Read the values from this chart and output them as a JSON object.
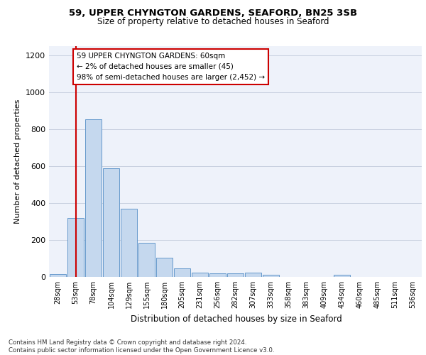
{
  "title_line1": "59, UPPER CHYNGTON GARDENS, SEAFORD, BN25 3SB",
  "title_line2": "Size of property relative to detached houses in Seaford",
  "xlabel": "Distribution of detached houses by size in Seaford",
  "ylabel": "Number of detached properties",
  "categories": [
    "28sqm",
    "53sqm",
    "78sqm",
    "104sqm",
    "129sqm",
    "155sqm",
    "180sqm",
    "205sqm",
    "231sqm",
    "256sqm",
    "282sqm",
    "307sqm",
    "333sqm",
    "358sqm",
    "383sqm",
    "409sqm",
    "434sqm",
    "460sqm",
    "485sqm",
    "511sqm",
    "536sqm"
  ],
  "values": [
    17,
    320,
    855,
    590,
    368,
    185,
    105,
    48,
    22,
    18,
    18,
    25,
    10,
    0,
    0,
    0,
    12,
    0,
    0,
    0,
    0
  ],
  "bar_color": "#c5d8ee",
  "bar_edgecolor": "#6699cc",
  "annotation_box_text": "59 UPPER CHYNGTON GARDENS: 60sqm\n← 2% of detached houses are smaller (45)\n98% of semi-detached houses are larger (2,452) →",
  "vline_color": "#cc0000",
  "vline_x_index": 1.0,
  "ylim": [
    0,
    1250
  ],
  "yticks": [
    0,
    200,
    400,
    600,
    800,
    1000,
    1200
  ],
  "footer": "Contains HM Land Registry data © Crown copyright and database right 2024.\nContains public sector information licensed under the Open Government Licence v3.0.",
  "bg_color": "#eef2fa",
  "grid_color": "#c8d0e0"
}
